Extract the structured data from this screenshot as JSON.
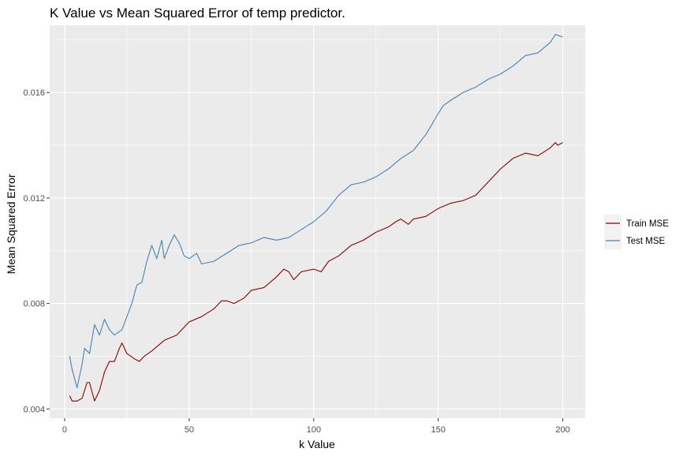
{
  "chart_data": {
    "type": "line",
    "title": "K Value vs Mean Squared Error of temp predictor.",
    "xlabel": "k Value",
    "ylabel": "Mean Squared Error",
    "xlim": [
      -6,
      209
    ],
    "ylim": [
      0.00365,
      0.01855
    ],
    "x_ticks": [
      0,
      50,
      100,
      150,
      200
    ],
    "x_tick_labels": [
      "0",
      "50",
      "100",
      "150",
      "200"
    ],
    "x_minor_ticks": [
      25,
      75,
      125,
      175
    ],
    "y_ticks": [
      0.004,
      0.008,
      0.012,
      0.016
    ],
    "y_tick_labels": [
      "0.004",
      "0.008",
      "0.012",
      "0.016"
    ],
    "y_minor_ticks": [
      0.006,
      0.01,
      0.014,
      0.018
    ],
    "grid": true,
    "legend_position": "right",
    "series": [
      {
        "name": "Train MSE",
        "color": "#8b0000",
        "points": [
          [
            2,
            0.0045
          ],
          [
            3,
            0.0043
          ],
          [
            5,
            0.0043
          ],
          [
            7,
            0.0044
          ],
          [
            9,
            0.005
          ],
          [
            10,
            0.005
          ],
          [
            12,
            0.0043
          ],
          [
            14,
            0.0047
          ],
          [
            16,
            0.0054
          ],
          [
            18,
            0.0058
          ],
          [
            20,
            0.0058
          ],
          [
            22,
            0.0063
          ],
          [
            23,
            0.0065
          ],
          [
            25,
            0.0061
          ],
          [
            28,
            0.0059
          ],
          [
            30,
            0.0058
          ],
          [
            32,
            0.006
          ],
          [
            35,
            0.0062
          ],
          [
            40,
            0.0066
          ],
          [
            45,
            0.0068
          ],
          [
            50,
            0.0073
          ],
          [
            55,
            0.0075
          ],
          [
            60,
            0.0078
          ],
          [
            63,
            0.0081
          ],
          [
            65,
            0.0081
          ],
          [
            68,
            0.008
          ],
          [
            72,
            0.0082
          ],
          [
            75,
            0.0085
          ],
          [
            80,
            0.0086
          ],
          [
            85,
            0.009
          ],
          [
            88,
            0.0093
          ],
          [
            90,
            0.0092
          ],
          [
            92,
            0.0089
          ],
          [
            95,
            0.0092
          ],
          [
            100,
            0.0093
          ],
          [
            103,
            0.0092
          ],
          [
            106,
            0.0096
          ],
          [
            110,
            0.0098
          ],
          [
            115,
            0.0102
          ],
          [
            120,
            0.0104
          ],
          [
            125,
            0.0107
          ],
          [
            130,
            0.0109
          ],
          [
            133,
            0.0111
          ],
          [
            135,
            0.0112
          ],
          [
            138,
            0.011
          ],
          [
            140,
            0.0112
          ],
          [
            145,
            0.0113
          ],
          [
            150,
            0.0116
          ],
          [
            155,
            0.0118
          ],
          [
            160,
            0.0119
          ],
          [
            165,
            0.0121
          ],
          [
            170,
            0.0126
          ],
          [
            175,
            0.0131
          ],
          [
            180,
            0.0135
          ],
          [
            185,
            0.0137
          ],
          [
            190,
            0.0136
          ],
          [
            195,
            0.0139
          ],
          [
            197,
            0.0141
          ],
          [
            198,
            0.014
          ],
          [
            200,
            0.0141
          ]
        ]
      },
      {
        "name": "Test MSE",
        "color": "#4682b4",
        "points": [
          [
            2,
            0.006
          ],
          [
            3,
            0.0055
          ],
          [
            5,
            0.0048
          ],
          [
            7,
            0.0057
          ],
          [
            8,
            0.0063
          ],
          [
            10,
            0.0061
          ],
          [
            12,
            0.0072
          ],
          [
            14,
            0.0068
          ],
          [
            16,
            0.0074
          ],
          [
            18,
            0.007
          ],
          [
            20,
            0.0068
          ],
          [
            23,
            0.007
          ],
          [
            25,
            0.0075
          ],
          [
            27,
            0.008
          ],
          [
            29,
            0.0087
          ],
          [
            31,
            0.0088
          ],
          [
            33,
            0.0096
          ],
          [
            35,
            0.0102
          ],
          [
            37,
            0.0097
          ],
          [
            39,
            0.0104
          ],
          [
            40,
            0.0097
          ],
          [
            42,
            0.0102
          ],
          [
            44,
            0.0106
          ],
          [
            46,
            0.0103
          ],
          [
            48,
            0.0098
          ],
          [
            50,
            0.0097
          ],
          [
            53,
            0.0099
          ],
          [
            55,
            0.0095
          ],
          [
            60,
            0.0096
          ],
          [
            65,
            0.0099
          ],
          [
            70,
            0.0102
          ],
          [
            75,
            0.0103
          ],
          [
            80,
            0.0105
          ],
          [
            85,
            0.0104
          ],
          [
            90,
            0.0105
          ],
          [
            95,
            0.0108
          ],
          [
            100,
            0.0111
          ],
          [
            105,
            0.0115
          ],
          [
            110,
            0.0121
          ],
          [
            115,
            0.0125
          ],
          [
            120,
            0.0126
          ],
          [
            125,
            0.0128
          ],
          [
            130,
            0.0131
          ],
          [
            135,
            0.0135
          ],
          [
            140,
            0.0138
          ],
          [
            145,
            0.0144
          ],
          [
            150,
            0.0152
          ],
          [
            152,
            0.0155
          ],
          [
            155,
            0.0157
          ],
          [
            160,
            0.016
          ],
          [
            165,
            0.0162
          ],
          [
            170,
            0.0165
          ],
          [
            175,
            0.0167
          ],
          [
            180,
            0.017
          ],
          [
            185,
            0.0174
          ],
          [
            190,
            0.0175
          ],
          [
            195,
            0.0179
          ],
          [
            197,
            0.0182
          ],
          [
            200,
            0.0181
          ]
        ]
      }
    ]
  },
  "colors": {
    "panel_background": "#ebebeb",
    "grid_major": "#ffffff",
    "legend_key_background": "#f2f2f2",
    "tick_text": "#4d4d4d"
  }
}
